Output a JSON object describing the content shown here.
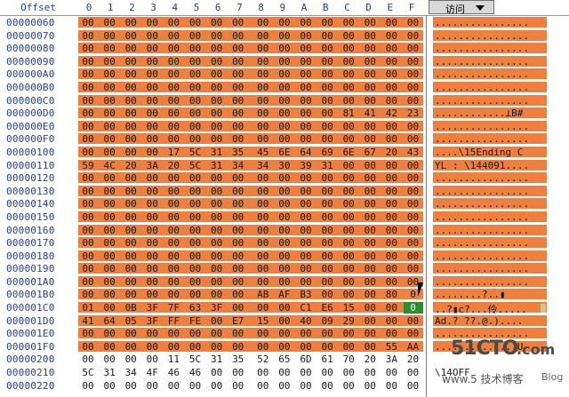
{
  "header": {
    "offset_label": "Offset",
    "columns": [
      "0",
      "1",
      "2",
      "3",
      "4",
      "5",
      "6",
      "7",
      "8",
      "9",
      "A",
      "B",
      "C",
      "D",
      "E",
      "F"
    ],
    "access_button_label": "访问"
  },
  "rows": [
    {
      "offset": "00000060",
      "bytes": [
        "00",
        "00",
        "00",
        "00",
        "00",
        "00",
        "00",
        "00",
        "00",
        "00",
        "00",
        "00",
        "00",
        "00",
        "00",
        "00"
      ],
      "ascii": "................",
      "hl": true
    },
    {
      "offset": "00000070",
      "bytes": [
        "00",
        "00",
        "00",
        "00",
        "00",
        "00",
        "00",
        "00",
        "00",
        "00",
        "00",
        "00",
        "00",
        "00",
        "00",
        "00"
      ],
      "ascii": "................",
      "hl": true
    },
    {
      "offset": "00000080",
      "bytes": [
        "00",
        "00",
        "00",
        "00",
        "00",
        "00",
        "00",
        "00",
        "00",
        "00",
        "00",
        "00",
        "00",
        "00",
        "00",
        "00"
      ],
      "ascii": "................",
      "hl": true
    },
    {
      "offset": "00000090",
      "bytes": [
        "00",
        "00",
        "00",
        "00",
        "00",
        "00",
        "00",
        "00",
        "00",
        "00",
        "00",
        "00",
        "00",
        "00",
        "00",
        "00"
      ],
      "ascii": "................",
      "hl": true
    },
    {
      "offset": "000000A0",
      "bytes": [
        "00",
        "00",
        "00",
        "00",
        "00",
        "00",
        "00",
        "00",
        "00",
        "00",
        "00",
        "00",
        "00",
        "00",
        "00",
        "00"
      ],
      "ascii": "................",
      "hl": true
    },
    {
      "offset": "000000B0",
      "bytes": [
        "00",
        "00",
        "00",
        "00",
        "00",
        "00",
        "00",
        "00",
        "00",
        "00",
        "00",
        "00",
        "00",
        "00",
        "00",
        "00"
      ],
      "ascii": "................",
      "hl": true
    },
    {
      "offset": "000000C0",
      "bytes": [
        "00",
        "00",
        "00",
        "00",
        "00",
        "00",
        "00",
        "00",
        "00",
        "00",
        "00",
        "00",
        "00",
        "00",
        "00",
        "00"
      ],
      "ascii": "................",
      "hl": true
    },
    {
      "offset": "000000D0",
      "bytes": [
        "00",
        "00",
        "00",
        "00",
        "00",
        "00",
        "00",
        "00",
        "00",
        "00",
        "00",
        "00",
        "81",
        "41",
        "42",
        "23"
      ],
      "ascii": "............⊥B#",
      "hl": true
    },
    {
      "offset": "000000E0",
      "bytes": [
        "00",
        "00",
        "00",
        "00",
        "00",
        "00",
        "00",
        "00",
        "00",
        "00",
        "00",
        "00",
        "00",
        "00",
        "00",
        "00"
      ],
      "ascii": "................",
      "hl": true
    },
    {
      "offset": "000000F0",
      "bytes": [
        "00",
        "00",
        "00",
        "00",
        "00",
        "00",
        "00",
        "00",
        "00",
        "00",
        "00",
        "00",
        "00",
        "00",
        "00",
        "00"
      ],
      "ascii": "................",
      "hl": true
    },
    {
      "offset": "00000100",
      "bytes": [
        "00",
        "00",
        "00",
        "00",
        "17",
        "5C",
        "31",
        "35",
        "45",
        "6E",
        "64",
        "69",
        "6E",
        "67",
        "20",
        "43"
      ],
      "ascii": "....\\15Ending C",
      "hl": true
    },
    {
      "offset": "00000110",
      "bytes": [
        "59",
        "4C",
        "20",
        "3A",
        "20",
        "5C",
        "31",
        "34",
        "34",
        "30",
        "39",
        "31",
        "00",
        "00",
        "00",
        "00"
      ],
      "ascii": "YL : \\144091....",
      "hl": true
    },
    {
      "offset": "00000120",
      "bytes": [
        "00",
        "00",
        "00",
        "00",
        "00",
        "00",
        "00",
        "00",
        "00",
        "00",
        "00",
        "00",
        "00",
        "00",
        "00",
        "00"
      ],
      "ascii": "................",
      "hl": true
    },
    {
      "offset": "00000130",
      "bytes": [
        "00",
        "00",
        "00",
        "00",
        "00",
        "00",
        "00",
        "00",
        "00",
        "00",
        "00",
        "00",
        "00",
        "00",
        "00",
        "00"
      ],
      "ascii": "................",
      "hl": true
    },
    {
      "offset": "00000140",
      "bytes": [
        "00",
        "00",
        "00",
        "00",
        "00",
        "00",
        "00",
        "00",
        "00",
        "00",
        "00",
        "00",
        "00",
        "00",
        "00",
        "00"
      ],
      "ascii": "................",
      "hl": true
    },
    {
      "offset": "00000150",
      "bytes": [
        "00",
        "00",
        "00",
        "00",
        "00",
        "00",
        "00",
        "00",
        "00",
        "00",
        "00",
        "00",
        "00",
        "00",
        "00",
        "00"
      ],
      "ascii": "................",
      "hl": true
    },
    {
      "offset": "00000160",
      "bytes": [
        "00",
        "00",
        "00",
        "00",
        "00",
        "00",
        "00",
        "00",
        "00",
        "00",
        "00",
        "00",
        "00",
        "00",
        "00",
        "00"
      ],
      "ascii": "................",
      "hl": true
    },
    {
      "offset": "00000170",
      "bytes": [
        "00",
        "00",
        "00",
        "00",
        "00",
        "00",
        "00",
        "00",
        "00",
        "00",
        "00",
        "00",
        "00",
        "00",
        "00",
        "00"
      ],
      "ascii": "................",
      "hl": true
    },
    {
      "offset": "00000180",
      "bytes": [
        "00",
        "00",
        "00",
        "00",
        "00",
        "00",
        "00",
        "00",
        "00",
        "00",
        "00",
        "00",
        "00",
        "00",
        "00",
        "00"
      ],
      "ascii": "................",
      "hl": true
    },
    {
      "offset": "00000190",
      "bytes": [
        "00",
        "00",
        "00",
        "00",
        "00",
        "00",
        "00",
        "00",
        "00",
        "00",
        "00",
        "00",
        "00",
        "00",
        "00",
        "00"
      ],
      "ascii": "................",
      "hl": true
    },
    {
      "offset": "000001A0",
      "bytes": [
        "00",
        "00",
        "00",
        "00",
        "00",
        "00",
        "00",
        "00",
        "00",
        "00",
        "00",
        "00",
        "00",
        "00",
        "00",
        "00"
      ],
      "ascii": "................",
      "hl": true
    },
    {
      "offset": "000001B0",
      "bytes": [
        "00",
        "00",
        "00",
        "00",
        "00",
        "00",
        "00",
        "00",
        "AB",
        "AF",
        "B3",
        "00",
        "00",
        "00",
        "80",
        "0"
      ],
      "ascii": "........?..▮",
      "hl": true
    },
    {
      "offset": "000001C0",
      "bytes": [
        "01",
        "00",
        "0B",
        "3F",
        "7F",
        "63",
        "3F",
        "00",
        "00",
        "00",
        "C1",
        "E6",
        "15",
        "00",
        "00",
        "0"
      ],
      "ascii": "..?▮c?...伶.....",
      "hl": true,
      "cursor_col": 15
    },
    {
      "offset": "000001D0",
      "bytes": [
        "41",
        "64",
        "05",
        "3F",
        "FF",
        "FE",
        "00",
        "E7",
        "15",
        "00",
        "40",
        "09",
        "29",
        "00",
        "00",
        "00"
      ],
      "ascii": "Ad.? ??.@.)....",
      "hl": true
    },
    {
      "offset": "000001E0",
      "bytes": [
        "00",
        "00",
        "00",
        "00",
        "00",
        "00",
        "00",
        "00",
        "00",
        "00",
        "00",
        "00",
        "00",
        "00",
        "00",
        "00"
      ],
      "ascii": "................",
      "hl": true
    },
    {
      "offset": "000001F0",
      "bytes": [
        "00",
        "00",
        "00",
        "00",
        "00",
        "00",
        "00",
        "00",
        "00",
        "00",
        "00",
        "00",
        "00",
        "00",
        "55",
        "AA"
      ],
      "ascii": "..............U",
      "hl": true
    },
    {
      "offset": "00000200",
      "bytes": [
        "00",
        "00",
        "00",
        "00",
        "11",
        "5C",
        "31",
        "35",
        "52",
        "65",
        "6D",
        "61",
        "70",
        "20",
        "3A",
        "20"
      ],
      "ascii": "",
      "hl": false
    },
    {
      "offset": "00000210",
      "bytes": [
        "5C",
        "31",
        "34",
        "4F",
        "46",
        "46",
        "00",
        "00",
        "00",
        "00",
        "00",
        "00",
        "00",
        "00",
        "00",
        "00"
      ],
      "ascii": "\\14OFF",
      "hl": false
    },
    {
      "offset": "00000220",
      "bytes": [
        "00",
        "00",
        "00",
        "00",
        "00",
        "00",
        "00",
        "00",
        "00",
        "00",
        "00",
        "00",
        "00",
        "00",
        "00",
        "00"
      ],
      "ascii": "",
      "hl": false
    }
  ],
  "watermark": {
    "main": "51CTO",
    "domain": ".com",
    "sub": "www.5 技术博客",
    "blog": "Blog"
  },
  "colors": {
    "highlight": "#ee7f3e",
    "offset_text": "#1f3fa8",
    "cursor": "#2e8b2e"
  }
}
